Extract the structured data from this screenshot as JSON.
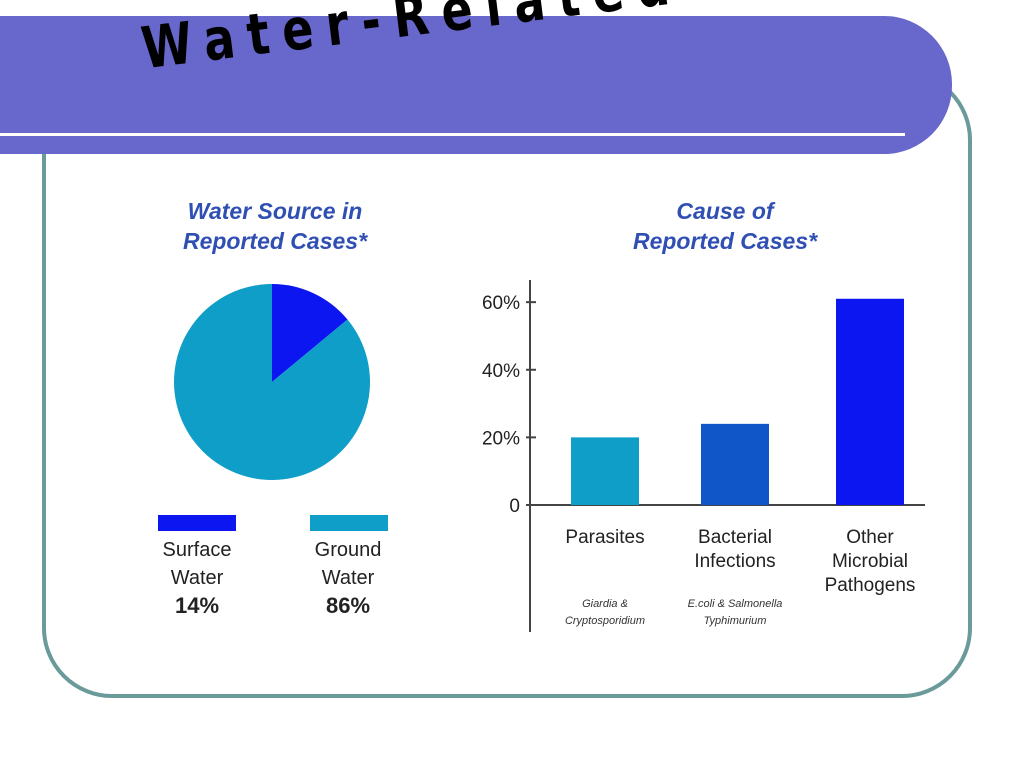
{
  "slide": {
    "title": "Water-Related Disease",
    "colors": {
      "banner": "#6767cc",
      "frame": "#6a9a9a",
      "chart_title": "#2f4fb3"
    }
  },
  "chart_data": [
    {
      "type": "pie",
      "title": [
        "Water Source in",
        "Reported Cases*"
      ],
      "slices": [
        {
          "label": [
            "Surface",
            "Water"
          ],
          "value": 14,
          "display": "14%",
          "color": "#0b16f0"
        },
        {
          "label": [
            "Ground",
            "Water"
          ],
          "value": 86,
          "display": "86%",
          "color": "#0f9ec7"
        }
      ]
    },
    {
      "type": "bar",
      "title": [
        "Cause of",
        "Reported Cases*"
      ],
      "categories": [
        {
          "label": [
            "Parasites"
          ],
          "sublabel": [
            "Giardia &",
            "Cryptosporidium"
          ]
        },
        {
          "label": [
            "Bacterial",
            "Infections"
          ],
          "sublabel": [
            "E.coli & Salmonella",
            "Typhimurium"
          ]
        },
        {
          "label": [
            "Other",
            "Microbial",
            "Pathogens"
          ],
          "sublabel": []
        }
      ],
      "values": [
        20,
        24,
        61
      ],
      "colors": [
        "#0f9ec7",
        "#1156c9",
        "#0b16f0"
      ],
      "yticks": [
        {
          "value": 0,
          "label": "0"
        },
        {
          "value": 20,
          "label": "20%"
        },
        {
          "value": 40,
          "label": "40%"
        },
        {
          "value": 60,
          "label": "60%"
        }
      ],
      "ylim": [
        0,
        63
      ]
    }
  ]
}
